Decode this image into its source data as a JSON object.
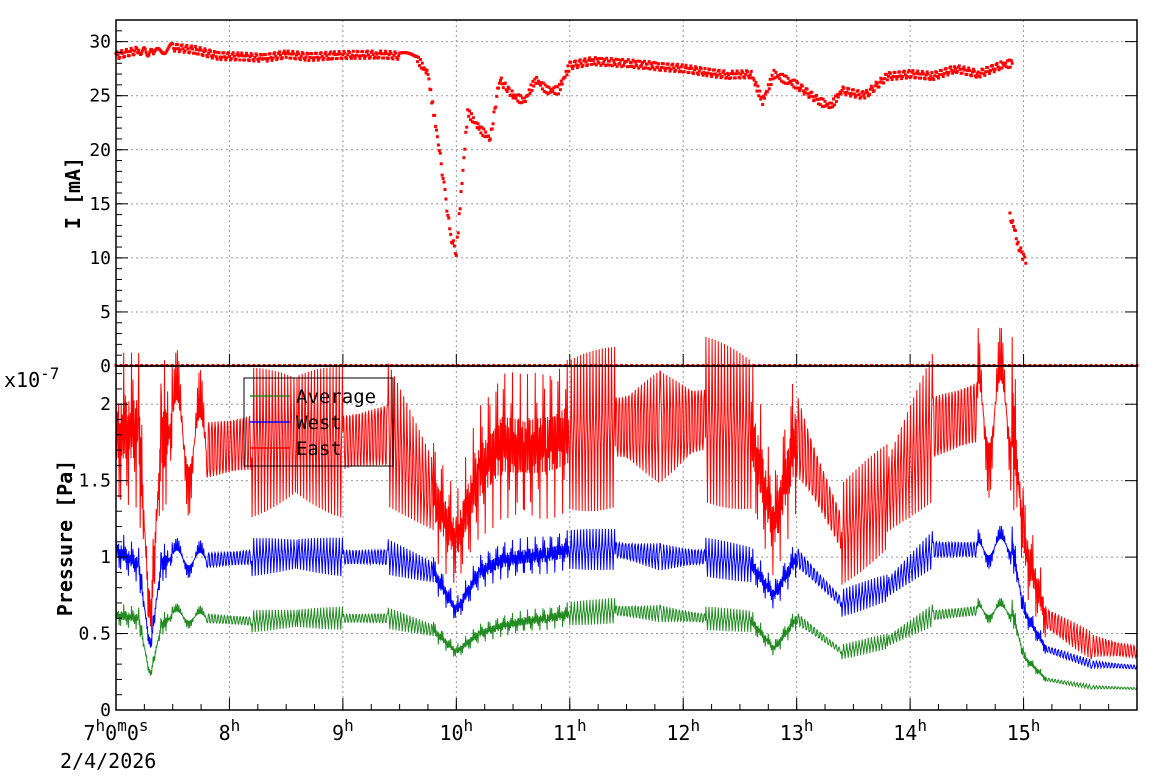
{
  "chart_data": [
    {
      "type": "scatter",
      "ylabel": "I [mA]",
      "ylim": [
        0,
        32
      ],
      "yticks": [
        "0",
        "5",
        "10",
        "15",
        "20",
        "25",
        "30"
      ],
      "grid": true,
      "series": [
        {
          "color": "#ff0000",
          "x": [
            7.0,
            7.2,
            7.33,
            7.5,
            7.7,
            7.9,
            8.1,
            8.3,
            8.5,
            8.7,
            8.9,
            9.1,
            9.3,
            9.5,
            9.65,
            9.75,
            9.85,
            9.9,
            9.95,
            10.0,
            10.1,
            10.2,
            10.3,
            10.38,
            10.5,
            10.6,
            10.7,
            10.8,
            10.9,
            11.0,
            11.2,
            11.5,
            11.8,
            12.0,
            12.2,
            12.4,
            12.6,
            12.7,
            12.8,
            12.9,
            13.0,
            13.2,
            13.3,
            13.4,
            13.6,
            13.8,
            14.0,
            14.2,
            14.4,
            14.6,
            14.8,
            14.9
          ],
          "y": [
            28.7,
            29.2,
            28.9,
            29.5,
            29.2,
            28.7,
            28.6,
            28.5,
            28.8,
            28.6,
            28.7,
            28.8,
            28.8,
            28.7,
            28.5,
            27.0,
            20.0,
            16.0,
            12.0,
            10.5,
            23.5,
            22.0,
            21.0,
            26.5,
            25.0,
            24.5,
            26.5,
            25.5,
            25.5,
            27.8,
            28.2,
            28.0,
            27.7,
            27.5,
            27.2,
            26.9,
            27.0,
            24.5,
            27.0,
            26.5,
            26.0,
            24.5,
            24.0,
            25.5,
            25.0,
            26.8,
            27.0,
            26.8,
            27.5,
            27.0,
            27.8,
            28.0
          ]
        },
        {
          "color": "#ff0000",
          "x": [
            14.88,
            14.92,
            14.96,
            15.0,
            15.02
          ],
          "y": [
            14.0,
            12.5,
            11.0,
            10.0,
            9.5
          ]
        }
      ]
    },
    {
      "type": "line",
      "ylabel": "Pressure [Pa]",
      "y_exponent_base": "x10",
      "y_exponent_power": "-7",
      "ylim": [
        0,
        2.25
      ],
      "yticks": [
        "0",
        "0.5",
        "1",
        "1.5",
        "2"
      ],
      "grid": true,
      "x": [
        7.0,
        7.2,
        7.3,
        7.4,
        7.5,
        7.8,
        8.2,
        8.6,
        9.0,
        9.4,
        9.8,
        10.0,
        10.2,
        10.4,
        10.6,
        10.8,
        11.0,
        11.4,
        11.8,
        12.2,
        12.6,
        12.8,
        13.0,
        13.4,
        13.8,
        14.2,
        14.6,
        14.9,
        15.0,
        15.2,
        15.6,
        16.0
      ],
      "series": [
        {
          "name": "Average",
          "color": "#228b22",
          "values": [
            0.62,
            0.6,
            0.22,
            0.55,
            0.62,
            0.6,
            0.58,
            0.6,
            0.6,
            0.6,
            0.52,
            0.38,
            0.5,
            0.55,
            0.58,
            0.6,
            0.63,
            0.65,
            0.63,
            0.6,
            0.58,
            0.4,
            0.6,
            0.38,
            0.45,
            0.62,
            0.65,
            0.65,
            0.35,
            0.2,
            0.15,
            0.14
          ]
        },
        {
          "name": "West",
          "color": "#0000ff",
          "values": [
            1.05,
            0.95,
            0.4,
            0.95,
            1.0,
            0.98,
            1.0,
            1.02,
            1.0,
            1.0,
            0.9,
            0.65,
            0.9,
            0.98,
            1.0,
            1.02,
            1.05,
            1.05,
            1.0,
            1.0,
            0.95,
            0.75,
            1.0,
            0.7,
            0.8,
            1.05,
            1.05,
            1.08,
            0.65,
            0.4,
            0.3,
            0.28
          ]
        },
        {
          "name": "East",
          "color": "#ff0000",
          "values": [
            1.8,
            1.85,
            0.55,
            1.75,
            1.85,
            1.7,
            1.75,
            1.8,
            1.75,
            1.8,
            1.4,
            1.1,
            1.55,
            1.75,
            1.7,
            1.75,
            1.8,
            1.85,
            1.85,
            1.9,
            1.8,
            1.2,
            1.8,
            1.15,
            1.4,
            1.85,
            1.95,
            1.95,
            1.1,
            0.6,
            0.42,
            0.38
          ]
        }
      ]
    }
  ],
  "x_axis": {
    "xlim": [
      7.0,
      16.0
    ],
    "ticks": [
      {
        "x": 7.0,
        "base": "7",
        "sup": "h",
        "base2": "0",
        "sup2": "m",
        "base3": "0",
        "sup3": "s"
      },
      {
        "x": 8.0,
        "base": "8",
        "sup": "h"
      },
      {
        "x": 9.0,
        "base": "9",
        "sup": "h"
      },
      {
        "x": 10.0,
        "base": "10",
        "sup": "h"
      },
      {
        "x": 11.0,
        "base": "11",
        "sup": "h"
      },
      {
        "x": 12.0,
        "base": "12",
        "sup": "h"
      },
      {
        "x": 13.0,
        "base": "13",
        "sup": "h"
      },
      {
        "x": 14.0,
        "base": "14",
        "sup": "h"
      },
      {
        "x": 15.0,
        "base": "15",
        "sup": "h"
      }
    ],
    "date": "2/4/2026"
  },
  "legend": {
    "placement": "top-left",
    "items": [
      {
        "label": "Average",
        "color": "#228b22"
      },
      {
        "label": "West",
        "color": "#0000ff"
      },
      {
        "label": "East",
        "color": "#ff0000"
      }
    ]
  }
}
